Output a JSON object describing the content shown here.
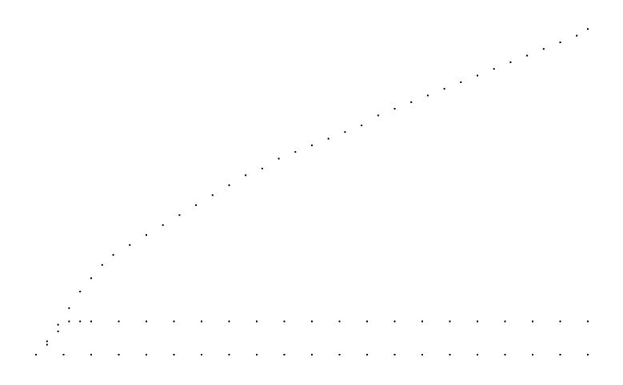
{
  "chart_data": {
    "type": "scatter",
    "title": "",
    "xlabel": "",
    "ylabel": "",
    "xlim": [
      0,
      100
    ],
    "ylim": [
      0,
      100
    ],
    "grid": false,
    "legend": "none",
    "marker_color": "#000000",
    "series": [
      {
        "x": [
          2,
          4,
          6,
          8,
          10,
          12,
          14,
          17,
          20,
          23,
          26,
          29,
          32,
          35,
          38,
          41,
          44,
          47,
          50,
          53,
          56,
          59,
          62,
          65,
          68,
          71,
          74,
          77,
          80,
          83,
          86,
          89,
          92,
          95,
          98,
          100
        ],
        "y": [
          4,
          9,
          14,
          19,
          23,
          27,
          30,
          33,
          36,
          39,
          42,
          45,
          48,
          51,
          54,
          56,
          59,
          61,
          63,
          65,
          67,
          69,
          72,
          74,
          76,
          78,
          80,
          82,
          84,
          86,
          88,
          90,
          92,
          94,
          96,
          98
        ]
      },
      {
        "x": [
          0,
          2,
          4,
          6,
          8,
          10,
          15,
          20,
          25,
          30,
          35,
          40,
          45,
          50,
          55,
          60,
          65,
          70,
          75,
          80,
          85,
          90,
          95,
          100
        ],
        "y": [
          0,
          3,
          7,
          10,
          10,
          10,
          10,
          10,
          10,
          10,
          10,
          10,
          10,
          10,
          10,
          10,
          10,
          10,
          10,
          10,
          10,
          10,
          10,
          10
        ]
      },
      {
        "x": [
          0,
          5,
          10,
          15,
          20,
          25,
          30,
          35,
          40,
          45,
          50,
          55,
          60,
          65,
          70,
          75,
          80,
          85,
          90,
          95,
          100
        ],
        "y": [
          0,
          0,
          0,
          0,
          0,
          0,
          0,
          0,
          0,
          0,
          0,
          0,
          0,
          0,
          0,
          0,
          0,
          0,
          0,
          0,
          0
        ]
      }
    ]
  }
}
